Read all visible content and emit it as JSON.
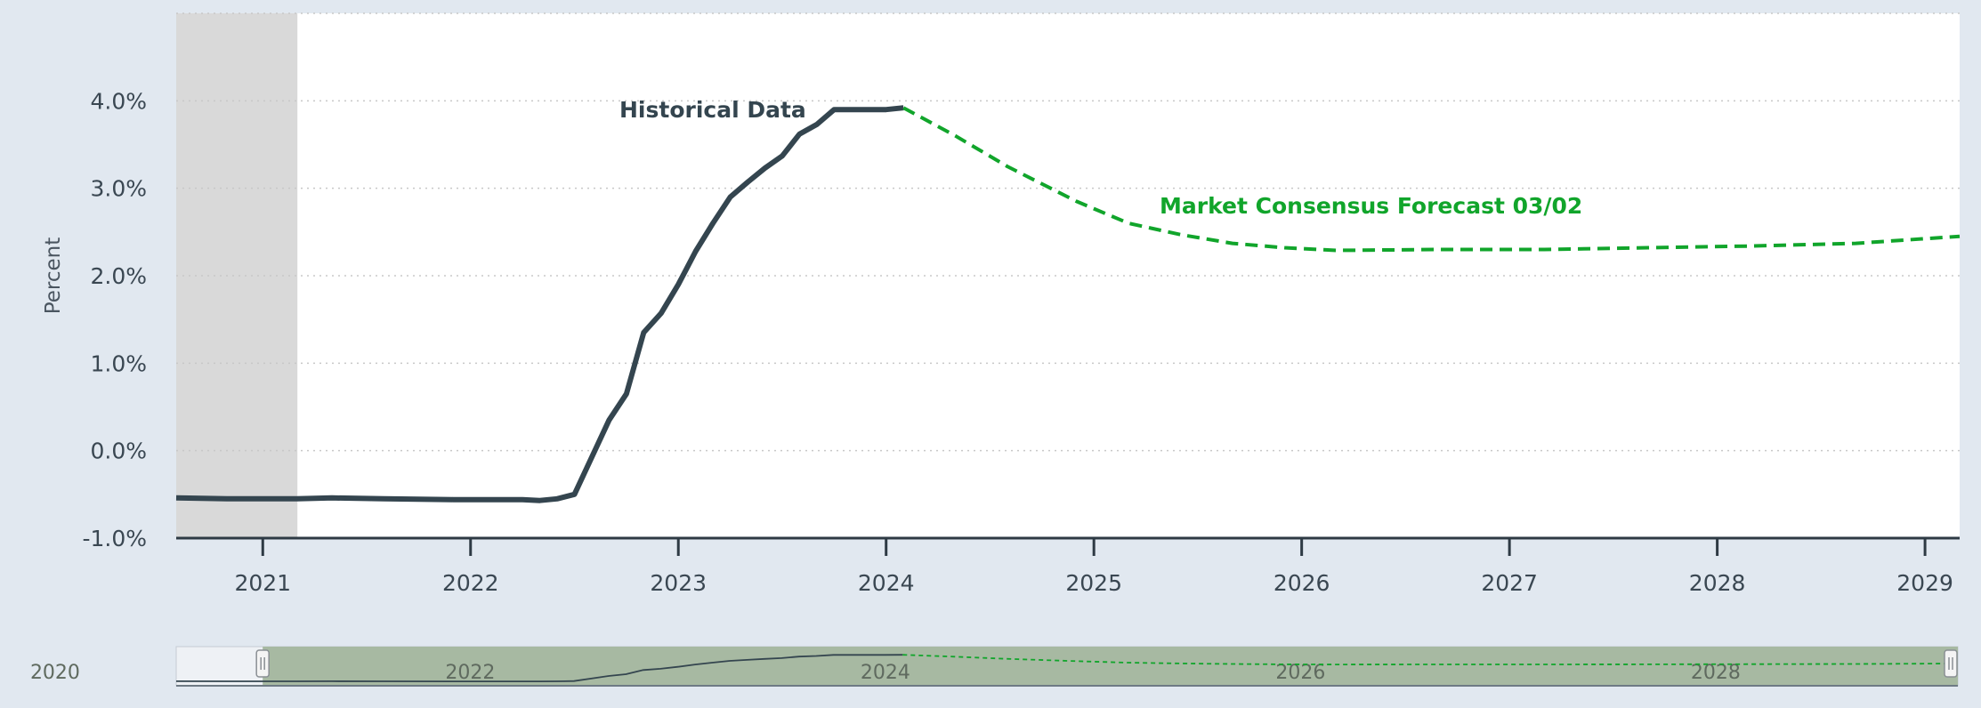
{
  "chart_data": {
    "type": "line",
    "ylabel": "Percent",
    "y_ticks": [
      "-1.0%",
      "0.0%",
      "1.0%",
      "2.0%",
      "3.0%",
      "4.0%"
    ],
    "ylim": [
      -1.0,
      5.0
    ],
    "x_ticks": [
      "2021",
      "2022",
      "2023",
      "2024",
      "2025",
      "2026",
      "2027",
      "2028",
      "2029"
    ],
    "xlim": [
      "2020-08",
      "2029-03"
    ],
    "grid": "horizontal dotted",
    "shaded_region": {
      "from": "2020-08",
      "to": "2021-03"
    },
    "series": [
      {
        "name": "Historical Data",
        "style": "solid",
        "color": "#34454f",
        "points": [
          [
            "2020-08",
            -0.54
          ],
          [
            "2020-11",
            -0.55
          ],
          [
            "2021-03",
            -0.55
          ],
          [
            "2021-05",
            -0.54
          ],
          [
            "2021-08",
            -0.55
          ],
          [
            "2021-12",
            -0.56
          ],
          [
            "2022-04",
            -0.56
          ],
          [
            "2022-05",
            -0.57
          ],
          [
            "2022-06",
            -0.55
          ],
          [
            "2022-07",
            -0.5
          ],
          [
            "2022-09",
            0.35
          ],
          [
            "2022-10",
            0.65
          ],
          [
            "2022-11",
            1.35
          ],
          [
            "2022-12",
            1.57
          ],
          [
            "2023-01",
            1.9
          ],
          [
            "2023-02",
            2.28
          ],
          [
            "2023-03",
            2.6
          ],
          [
            "2023-04",
            2.9
          ],
          [
            "2023-05",
            3.07
          ],
          [
            "2023-06",
            3.23
          ],
          [
            "2023-07",
            3.37
          ],
          [
            "2023-08",
            3.62
          ],
          [
            "2023-09",
            3.73
          ],
          [
            "2023-10",
            3.9
          ],
          [
            "2023-12",
            3.9
          ],
          [
            "2024-01",
            3.9
          ],
          [
            "2024-02",
            3.92
          ]
        ]
      },
      {
        "name": "Market Consensus Forecast 03/02",
        "style": "dashed",
        "color": "#11a52b",
        "points": [
          [
            "2024-02",
            3.92
          ],
          [
            "2024-05",
            3.6
          ],
          [
            "2024-08",
            3.25
          ],
          [
            "2024-12",
            2.85
          ],
          [
            "2025-03",
            2.6
          ],
          [
            "2025-06",
            2.47
          ],
          [
            "2025-09",
            2.37
          ],
          [
            "2025-12",
            2.32
          ],
          [
            "2026-03",
            2.29
          ],
          [
            "2026-09",
            2.3
          ],
          [
            "2027-03",
            2.3
          ],
          [
            "2027-09",
            2.32
          ],
          [
            "2028-03",
            2.34
          ],
          [
            "2028-09",
            2.37
          ],
          [
            "2029-03",
            2.45
          ]
        ]
      }
    ],
    "annotations": [
      {
        "text": "Historical Data"
      },
      {
        "text": "Market Consensus Forecast 03/02"
      }
    ],
    "navigator": {
      "ticks": [
        "2020",
        "2022",
        "2024",
        "2026",
        "2028"
      ],
      "range": [
        "2020-08",
        "2029-03"
      ],
      "selected": [
        "2021-01",
        "2029-03"
      ]
    }
  }
}
